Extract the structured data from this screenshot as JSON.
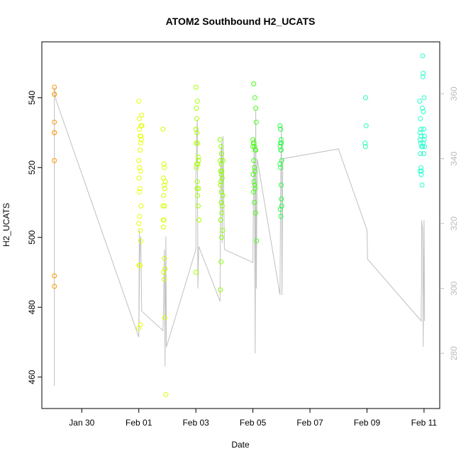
{
  "chart_data": {
    "type": "scatter",
    "title": "ATOM2 Southbound H2_UCATS",
    "xlabel": "Date",
    "ylabel": "H2_UCATS",
    "x_ticks": [
      {
        "day": 2,
        "label": "Jan 30"
      },
      {
        "day": 4,
        "label": "Feb 01"
      },
      {
        "day": 6,
        "label": "Feb 03"
      },
      {
        "day": 8,
        "label": "Feb 05"
      },
      {
        "day": 10,
        "label": "Feb 07"
      },
      {
        "day": 12,
        "label": "Feb 09"
      },
      {
        "day": 14,
        "label": "Feb 11"
      }
    ],
    "xlim": [
      0.6,
      14.55
    ],
    "ylim": [
      451,
      556
    ],
    "y_ticks": [
      460,
      480,
      500,
      520,
      540
    ],
    "y2_ticks": [
      280,
      300,
      320,
      340,
      360
    ],
    "y2lim": [
      263,
      376
    ],
    "grid": false,
    "colors": {
      "axis": "#000000",
      "secondary_axis": "#bbbbbb",
      "line": "#c0c0c0"
    },
    "series": [
      {
        "color": "#ff9900",
        "points": [
          [
            1.04,
            543
          ],
          [
            1.04,
            541
          ],
          [
            1.04,
            541
          ],
          [
            1.04,
            533
          ],
          [
            1.04,
            530
          ],
          [
            1.04,
            530
          ],
          [
            1.04,
            522
          ],
          [
            1.04,
            489
          ],
          [
            1.04,
            486
          ]
        ]
      },
      {
        "color": "#e6ff00",
        "points": [
          [
            4.0,
            539
          ],
          [
            4.02,
            534
          ],
          [
            4.05,
            529
          ],
          [
            4.07,
            527
          ],
          [
            4.08,
            532
          ],
          [
            4.1,
            535
          ],
          [
            4.0,
            522
          ],
          [
            4.03,
            520
          ],
          [
            4.06,
            519
          ],
          [
            4.01,
            517
          ],
          [
            4.04,
            514
          ],
          [
            4.02,
            513
          ],
          [
            4.09,
            528
          ],
          [
            4.11,
            532
          ],
          [
            4.0,
            504
          ],
          [
            4.03,
            506
          ],
          [
            4.05,
            502
          ],
          [
            4.07,
            499
          ],
          [
            4.01,
            492
          ],
          [
            4.04,
            492
          ],
          [
            4.06,
            475
          ],
          [
            4.0,
            474
          ],
          [
            4.08,
            509
          ],
          [
            4.02,
            531
          ],
          [
            4.05,
            525
          ],
          [
            4.07,
            529
          ]
        ]
      },
      {
        "color": "#d0ff00",
        "points": [
          [
            4.85,
            531
          ],
          [
            4.88,
            521
          ],
          [
            4.9,
            520
          ],
          [
            4.86,
            517
          ],
          [
            4.89,
            515
          ],
          [
            4.91,
            514
          ],
          [
            4.87,
            512
          ],
          [
            4.9,
            509
          ],
          [
            4.85,
            509
          ],
          [
            4.88,
            505
          ],
          [
            4.86,
            503
          ],
          [
            4.9,
            494
          ],
          [
            4.92,
            491
          ],
          [
            4.87,
            490
          ],
          [
            4.89,
            488
          ],
          [
            4.91,
            477
          ],
          [
            4.95,
            455
          ],
          [
            4.93,
            516
          ],
          [
            4.86,
            505
          ]
        ]
      },
      {
        "color": "#a8ff00",
        "points": [
          [
            6.0,
            543
          ],
          [
            6.02,
            537
          ],
          [
            6.05,
            539
          ],
          [
            6.03,
            534
          ],
          [
            6.0,
            531
          ],
          [
            6.04,
            530
          ],
          [
            6.06,
            527
          ],
          [
            6.01,
            527
          ],
          [
            6.08,
            523
          ],
          [
            6.1,
            522
          ],
          [
            6.03,
            521
          ],
          [
            6.07,
            521
          ],
          [
            6.02,
            520
          ],
          [
            6.05,
            516
          ],
          [
            6.09,
            514
          ],
          [
            6.04,
            514
          ],
          [
            6.06,
            512
          ],
          [
            6.08,
            509
          ],
          [
            6.11,
            505
          ],
          [
            6.0,
            490
          ]
        ]
      },
      {
        "color": "#8cff00",
        "points": [
          [
            6.85,
            528
          ],
          [
            6.88,
            526
          ],
          [
            6.9,
            524
          ],
          [
            6.86,
            522
          ],
          [
            6.89,
            521
          ],
          [
            6.91,
            519
          ],
          [
            6.87,
            519
          ],
          [
            6.9,
            518
          ],
          [
            6.92,
            517
          ],
          [
            6.88,
            516
          ],
          [
            6.86,
            515
          ],
          [
            6.9,
            513
          ],
          [
            6.94,
            512
          ],
          [
            6.89,
            510
          ],
          [
            6.91,
            507
          ],
          [
            6.87,
            505
          ],
          [
            6.93,
            502
          ],
          [
            6.9,
            500
          ],
          [
            6.88,
            493
          ],
          [
            6.86,
            485
          ],
          [
            6.95,
            522
          ],
          [
            6.92,
            509
          ]
        ]
      },
      {
        "color": "#44ff11",
        "points": [
          [
            8.0,
            528
          ],
          [
            8.02,
            527
          ],
          [
            8.04,
            527
          ],
          [
            8.06,
            526
          ],
          [
            8.08,
            525
          ],
          [
            8.1,
            525
          ],
          [
            8.03,
            522
          ],
          [
            8.05,
            520
          ],
          [
            8.07,
            519
          ],
          [
            8.01,
            518
          ],
          [
            8.04,
            516
          ],
          [
            8.06,
            515
          ],
          [
            8.08,
            514
          ],
          [
            8.02,
            513
          ],
          [
            8.05,
            510
          ],
          [
            8.09,
            507
          ],
          [
            8.1,
            537
          ],
          [
            8.07,
            540
          ],
          [
            8.03,
            544
          ],
          [
            8.12,
            533
          ],
          [
            8.13,
            499
          ],
          [
            8.0,
            526
          ]
        ]
      },
      {
        "color": "#22ff44",
        "points": [
          [
            8.95,
            532
          ],
          [
            8.97,
            531
          ],
          [
            8.99,
            528
          ],
          [
            9.0,
            527
          ],
          [
            8.96,
            526
          ],
          [
            8.98,
            525
          ],
          [
            9.01,
            522
          ],
          [
            8.95,
            521
          ],
          [
            8.97,
            520
          ],
          [
            8.99,
            515
          ],
          [
            9.0,
            511
          ],
          [
            8.96,
            508
          ],
          [
            8.98,
            506
          ],
          [
            9.01,
            509
          ],
          [
            8.97,
            527
          ],
          [
            8.99,
            525
          ]
        ]
      },
      {
        "color": "#22ffaa",
        "points": [
          [
            11.95,
            540
          ],
          [
            11.97,
            532
          ],
          [
            11.93,
            527
          ],
          [
            11.95,
            526
          ]
        ]
      },
      {
        "color": "#22ffcc",
        "points": [
          [
            13.85,
            539
          ],
          [
            13.87,
            534
          ],
          [
            13.89,
            531
          ],
          [
            13.86,
            530
          ],
          [
            13.9,
            529
          ],
          [
            13.88,
            527
          ],
          [
            13.92,
            526
          ],
          [
            13.95,
            526
          ],
          [
            13.87,
            524
          ],
          [
            13.89,
            520
          ],
          [
            13.91,
            519
          ],
          [
            13.86,
            519
          ],
          [
            13.9,
            518
          ],
          [
            13.93,
            515
          ],
          [
            13.95,
            552
          ],
          [
            13.97,
            547
          ],
          [
            13.96,
            546
          ],
          [
            14.0,
            540
          ],
          [
            13.98,
            536
          ],
          [
            13.99,
            531
          ],
          [
            14.01,
            529
          ],
          [
            14.0,
            528
          ],
          [
            13.97,
            527
          ],
          [
            14.02,
            526
          ],
          [
            13.99,
            524
          ],
          [
            13.86,
            528
          ],
          [
            13.94,
            537
          ]
        ]
      }
    ],
    "secondary_line": {
      "y_axis": "right",
      "points": [
        [
          1.04,
          270
        ],
        [
          1.04,
          362
        ],
        [
          1.1,
          358
        ],
        [
          4.0,
          285
        ],
        [
          4.02,
          318
        ],
        [
          4.0,
          285
        ],
        [
          4.03,
          308
        ],
        [
          4.05,
          315
        ],
        [
          4.07,
          316
        ],
        [
          4.1,
          293
        ],
        [
          4.85,
          287
        ],
        [
          4.87,
          296
        ],
        [
          4.9,
          312
        ],
        [
          4.92,
          276
        ],
        [
          4.95,
          316
        ],
        [
          4.97,
          282
        ],
        [
          6.0,
          312
        ],
        [
          6.0,
          335
        ],
        [
          6.03,
          348
        ],
        [
          6.05,
          352
        ],
        [
          6.07,
          300
        ],
        [
          6.1,
          313
        ],
        [
          6.85,
          296
        ],
        [
          6.87,
          340
        ],
        [
          6.9,
          345
        ],
        [
          6.92,
          314
        ],
        [
          6.95,
          347
        ],
        [
          7.0,
          312
        ],
        [
          8.0,
          308
        ],
        [
          8.02,
          330
        ],
        [
          8.05,
          346
        ],
        [
          8.08,
          280
        ],
        [
          8.1,
          355
        ],
        [
          8.12,
          300
        ],
        [
          8.15,
          340
        ],
        [
          8.95,
          298
        ],
        [
          8.97,
          328
        ],
        [
          9.0,
          350
        ],
        [
          9.02,
          298
        ],
        [
          9.05,
          340
        ],
        [
          11.0,
          343
        ],
        [
          12.0,
          318
        ],
        [
          12.02,
          309
        ],
        [
          13.9,
          290
        ],
        [
          13.92,
          321
        ],
        [
          13.95,
          318
        ],
        [
          13.97,
          282
        ],
        [
          14.0,
          321
        ],
        [
          14.02,
          290
        ]
      ]
    }
  }
}
